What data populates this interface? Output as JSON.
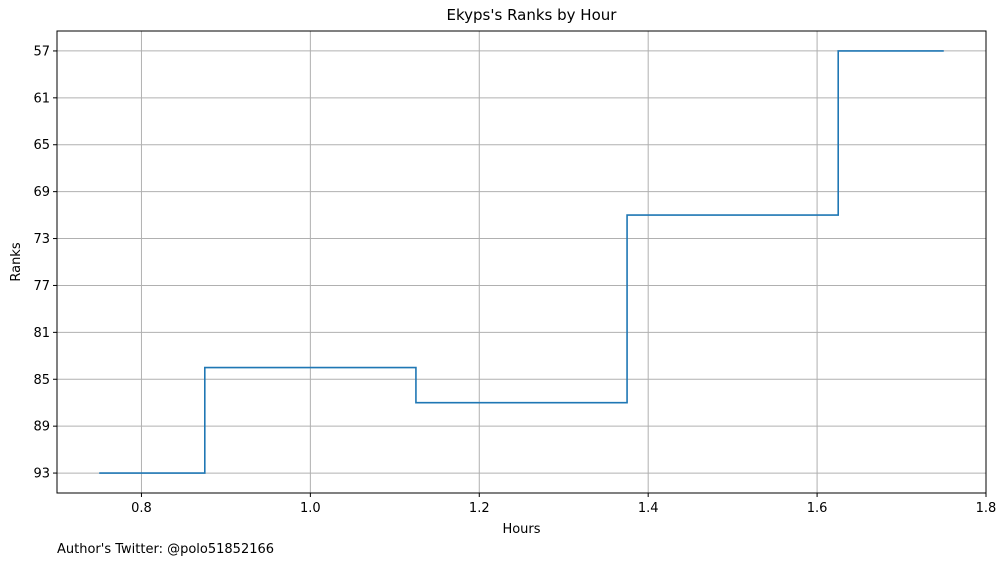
{
  "chart_data": {
    "type": "line",
    "drawstyle": "steps-mid",
    "title": "Ekyps's Ranks by Hour",
    "xlabel": "Hours",
    "ylabel": "Ranks",
    "x": [
      0.75,
      1.0,
      1.25,
      1.5,
      1.75
    ],
    "series": [
      {
        "values": [
          93,
          84,
          87,
          71,
          57
        ]
      }
    ],
    "xlim": [
      0.7,
      1.8
    ],
    "ylim": [
      94.7,
      55.3
    ],
    "y_inverted": true,
    "xticks": [
      0.8,
      1.0,
      1.2,
      1.4,
      1.6,
      1.8
    ],
    "xtick_labels": [
      "0.8",
      "1.0",
      "1.2",
      "1.4",
      "1.6",
      "1.8"
    ],
    "yticks": [
      57,
      61,
      65,
      69,
      73,
      77,
      81,
      85,
      89,
      93
    ],
    "ytick_labels": [
      "57",
      "61",
      "65",
      "69",
      "73",
      "77",
      "81",
      "85",
      "89",
      "93"
    ],
    "grid": true,
    "line_color": "#1f77b4",
    "grid_color": "#b0b0b0"
  },
  "footer": {
    "credit": "Author's Twitter: @polo51852166"
  }
}
